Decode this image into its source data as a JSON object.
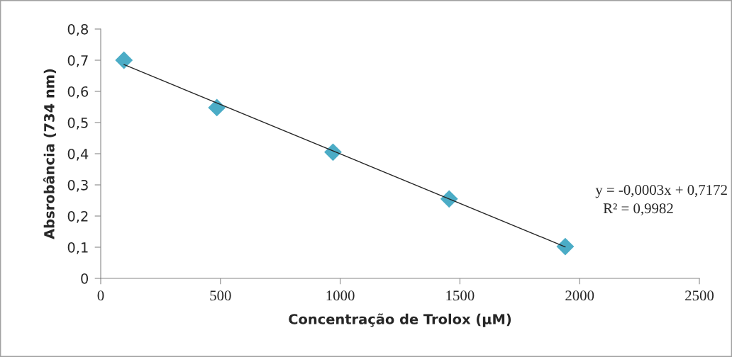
{
  "chart_data": {
    "type": "scatter",
    "xlabel": "Concentração de Trolox (µM)",
    "ylabel": "Absrobância (734 nm)",
    "series": [
      {
        "color": "#4bacc6",
        "marker": "diamond",
        "x": [
          97,
          485,
          970,
          1455,
          1940
        ],
        "values": [
          0.7,
          0.548,
          0.405,
          0.255,
          0.102
        ]
      },
      {
        "type": "line",
        "color": "#262626",
        "marker": "none",
        "line_style": "solid",
        "x": [
          97,
          1940
        ],
        "values": [
          0.686,
          0.101
        ]
      }
    ],
    "annotations": [
      "y = -0,0003x + 0,7172",
      "R² = 0,9982"
    ],
    "xlim": [
      0,
      2500
    ],
    "xticks": [
      0,
      500,
      1000,
      1500,
      2000,
      2500
    ],
    "ylim": [
      0,
      0.8
    ],
    "yticks": [
      0,
      {
        "value": 0.1,
        "label": "0,1"
      },
      {
        "value": 0.2,
        "label": "0,2"
      },
      {
        "value": 0.3,
        "label": "0,3"
      },
      {
        "value": 0.4,
        "label": "0,4"
      },
      {
        "value": 0.5,
        "label": "0,5"
      },
      {
        "value": 0.6,
        "label": "0,6"
      },
      {
        "value": 0.7,
        "label": "0,7"
      },
      {
        "value": 0.8,
        "label": "0,8"
      }
    ],
    "grid": false,
    "legend": false
  }
}
